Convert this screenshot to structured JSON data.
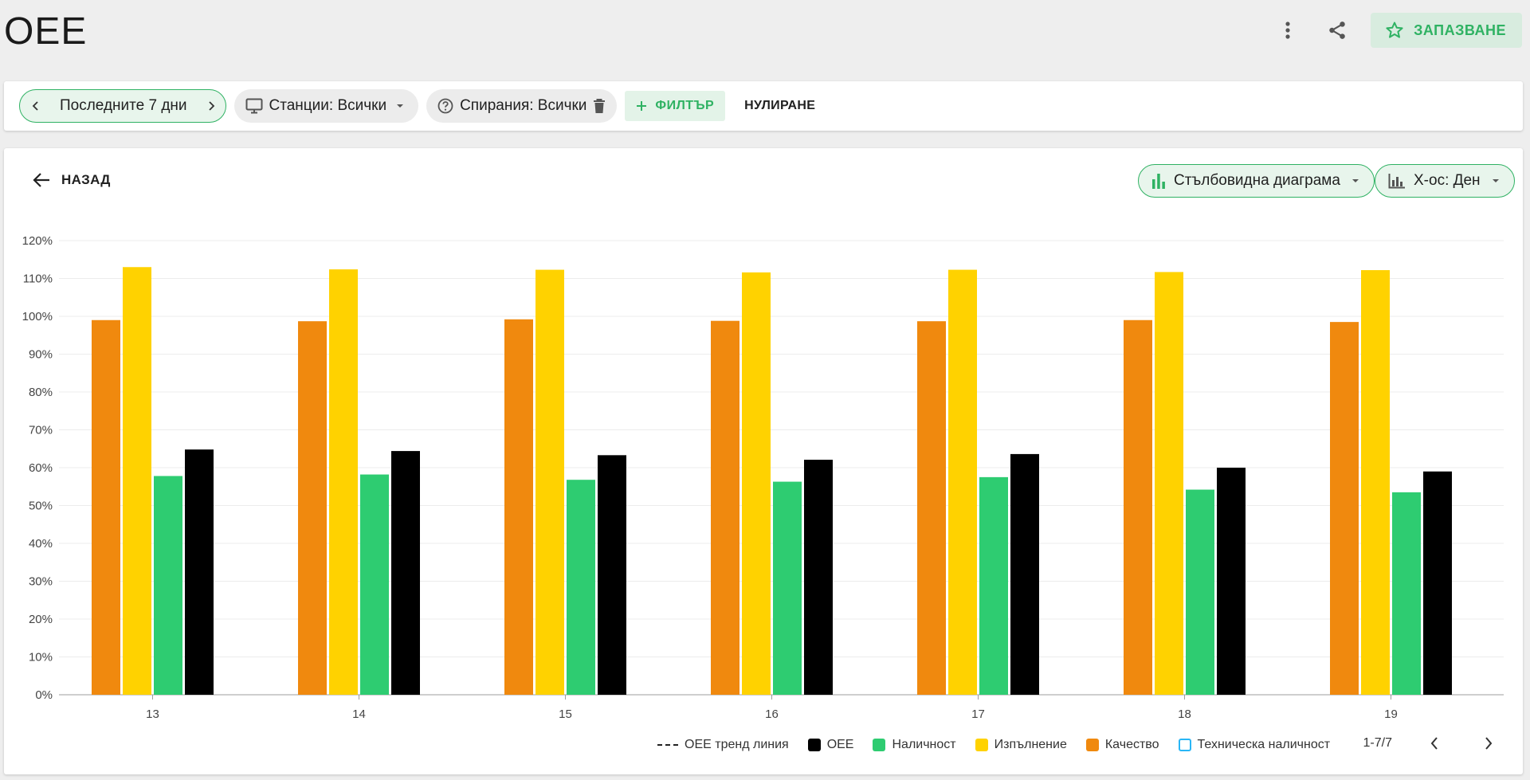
{
  "page": {
    "title": "OEE"
  },
  "top_actions": {
    "save_label": "ЗАПАЗВАНЕ"
  },
  "filters": {
    "date_range": "Последните 7 дни",
    "stations": "Станции: Всички",
    "stops": "Спирания: Всички",
    "add_filter": "ФИЛТЪР",
    "reset": "НУЛИРАНЕ"
  },
  "chart_panel": {
    "back_label": "НАЗАД",
    "chart_type_select": "Стълбовидна диаграма",
    "x_axis_select": "X-ос: Ден"
  },
  "colors": {
    "accent": "#2fb263",
    "oee": "#000000",
    "availability": "#2ecc71",
    "performance": "#ffd200",
    "quality": "#f0890e",
    "technical_availability": "#29b6f6"
  },
  "chart_data": {
    "type": "bar",
    "categories": [
      "13",
      "14",
      "15",
      "16",
      "17",
      "18",
      "19"
    ],
    "ylim": [
      0,
      120
    ],
    "yticks": [
      "0%",
      "10%",
      "20%",
      "30%",
      "40%",
      "50%",
      "60%",
      "70%",
      "80%",
      "90%",
      "100%",
      "110%",
      "120%"
    ],
    "series": [
      {
        "name": "Качество",
        "color": "#f0890e",
        "values": [
          99,
          98.7,
          99.2,
          98.8,
          98.7,
          99,
          98.5
        ]
      },
      {
        "name": "Изпълнение",
        "color": "#ffd200",
        "values": [
          113,
          112.4,
          112.3,
          111.6,
          112.3,
          111.7,
          112.2
        ]
      },
      {
        "name": "Наличност",
        "color": "#2ecc71",
        "values": [
          57.8,
          58.2,
          56.8,
          56.3,
          57.5,
          54.2,
          53.5
        ]
      },
      {
        "name": "OEE",
        "color": "#000000",
        "values": [
          64.8,
          64.4,
          63.3,
          62.1,
          63.6,
          60,
          59
        ]
      }
    ],
    "legend": [
      {
        "name": "OEE тренд линия",
        "kind": "dash",
        "color": "#222222"
      },
      {
        "name": "OEE",
        "kind": "fill",
        "color": "#000000"
      },
      {
        "name": "Наличност",
        "kind": "fill",
        "color": "#2ecc71"
      },
      {
        "name": "Изпълнение",
        "kind": "fill",
        "color": "#ffd200"
      },
      {
        "name": "Качество",
        "kind": "fill",
        "color": "#f0890e"
      },
      {
        "name": "Техническа наличност",
        "kind": "outline",
        "color": "#29b6f6"
      }
    ],
    "legend_placement": "bottom-right",
    "grid": true
  },
  "pagination": {
    "label": "1-7/7"
  }
}
